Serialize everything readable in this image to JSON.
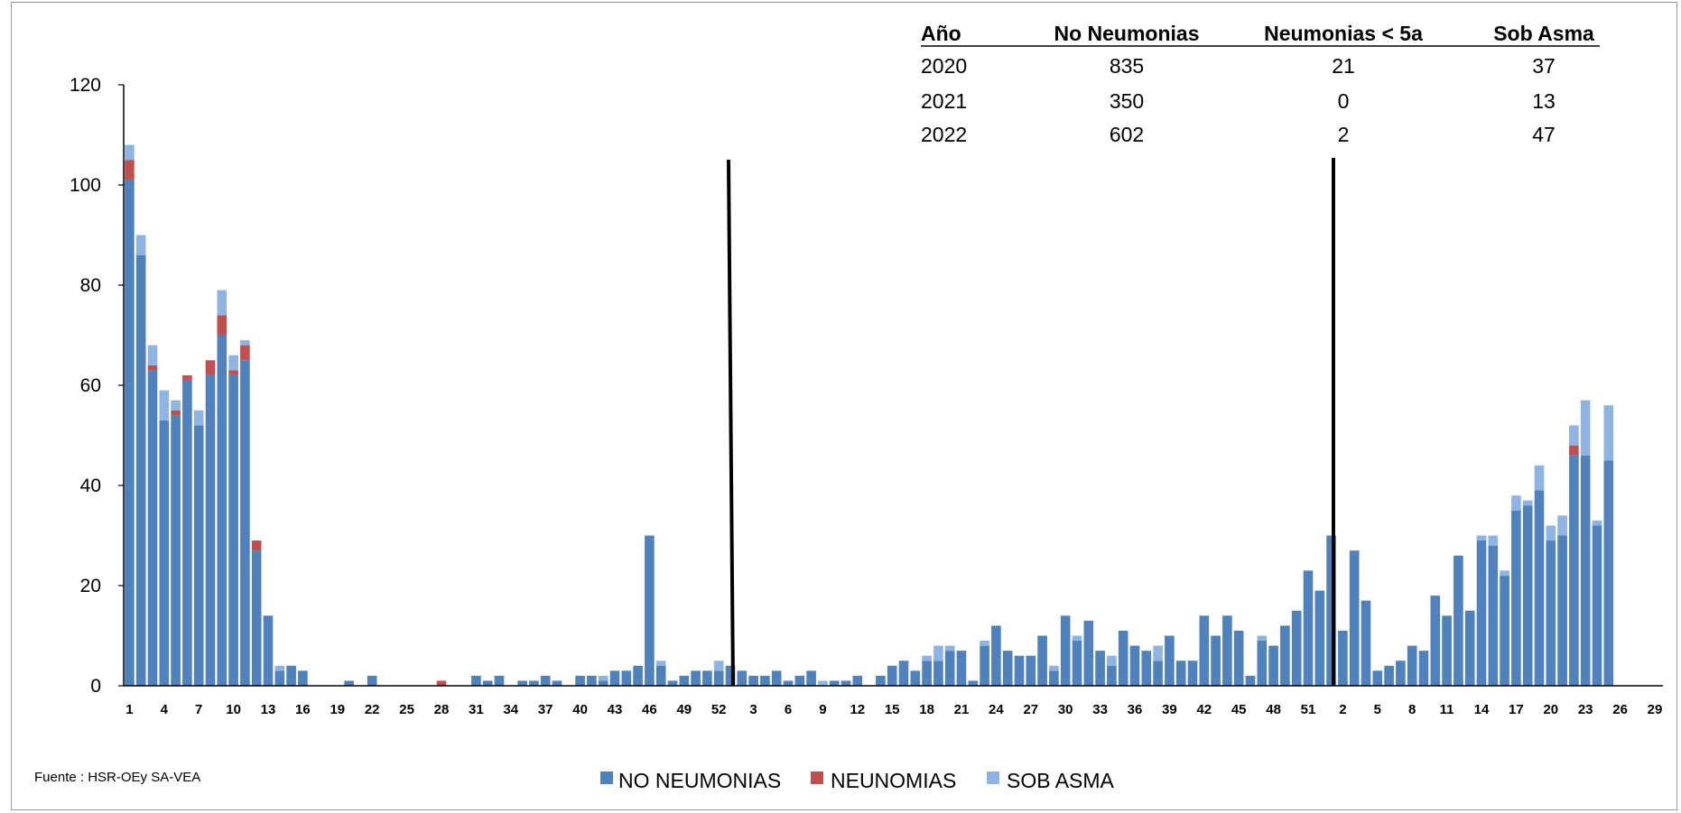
{
  "source": "Fuente : HSR-OEy SA-VEA",
  "colors": {
    "no_neumonias": "#4f81bd",
    "neumonias": "#c0504d",
    "sob_asma": "#8eb4e3"
  },
  "table": {
    "headers": [
      "Año",
      "No Neumonias",
      "Neumonias < 5a",
      "Sob  Asma"
    ],
    "rows": [
      [
        "2020",
        "835",
        "21",
        "37"
      ],
      [
        "2021",
        "350",
        "0",
        "13"
      ],
      [
        "2022",
        "602",
        "2",
        "47"
      ]
    ]
  },
  "chart_data": {
    "type": "bar",
    "stacked": true,
    "ylim": [
      0,
      120
    ],
    "yticks": [
      0,
      20,
      40,
      60,
      80,
      100,
      120
    ],
    "xtick_labels": [
      "1",
      "4",
      "7",
      "10",
      "13",
      "16",
      "19",
      "22",
      "25",
      "28",
      "31",
      "34",
      "37",
      "40",
      "43",
      "46",
      "49",
      "52",
      "3",
      "6",
      "9",
      "12",
      "15",
      "18",
      "21",
      "24",
      "27",
      "30",
      "33",
      "36",
      "39",
      "42",
      "45",
      "48",
      "51",
      "2",
      "5",
      "8",
      "11",
      "14",
      "17",
      "20",
      "23",
      "26",
      "29"
    ],
    "year_dividers_after_week_index": [
      53,
      105
    ],
    "legend_position": "bottom",
    "series": [
      {
        "name": "NO NEUMONIAS",
        "color": "#4f81bd",
        "values": [
          101,
          86,
          63,
          53,
          54,
          61,
          52,
          62,
          70,
          62,
          65,
          27,
          14,
          3,
          4,
          3,
          0,
          0,
          0,
          1,
          0,
          2,
          0,
          0,
          0,
          0,
          0,
          0,
          0,
          0,
          2,
          1,
          2,
          0,
          1,
          1,
          2,
          1,
          0,
          2,
          2,
          1,
          3,
          3,
          4,
          30,
          4,
          1,
          2,
          3,
          3,
          3,
          4,
          3,
          2,
          2,
          3,
          1,
          2,
          3,
          0,
          1,
          1,
          2,
          0,
          2,
          4,
          5,
          3,
          5,
          5,
          7,
          7,
          1,
          8,
          12,
          7,
          6,
          6,
          10,
          3,
          14,
          9,
          13,
          7,
          4,
          11,
          8,
          7,
          5,
          10,
          5,
          5,
          14,
          10,
          14,
          11,
          2,
          9,
          8,
          12,
          15,
          23,
          19,
          30,
          11,
          27,
          17,
          3,
          4,
          5,
          8,
          7,
          18,
          14,
          26,
          15,
          29,
          28,
          22,
          35,
          36,
          39,
          29,
          30,
          46,
          46,
          32,
          45
        ]
      },
      {
        "name": "NEUNOMIAS",
        "color": "#c0504d",
        "values": [
          4,
          0,
          1,
          0,
          1,
          1,
          0,
          3,
          4,
          1,
          3,
          2,
          0,
          0,
          0,
          0,
          0,
          0,
          0,
          0,
          0,
          0,
          0,
          0,
          0,
          0,
          0,
          1,
          0,
          0,
          0,
          0,
          0,
          0,
          0,
          0,
          0,
          0,
          0,
          0,
          0,
          0,
          0,
          0,
          0,
          0,
          0,
          0,
          0,
          0,
          0,
          0,
          0,
          0,
          0,
          0,
          0,
          0,
          0,
          0,
          0,
          0,
          0,
          0,
          0,
          0,
          0,
          0,
          0,
          0,
          0,
          0,
          0,
          0,
          0,
          0,
          0,
          0,
          0,
          0,
          0,
          0,
          0,
          0,
          0,
          0,
          0,
          0,
          0,
          0,
          0,
          0,
          0,
          0,
          0,
          0,
          0,
          0,
          0,
          0,
          0,
          0,
          0,
          0,
          0,
          0,
          0,
          0,
          0,
          0,
          0,
          0,
          0,
          0,
          0,
          0,
          0,
          0,
          0,
          0,
          0,
          0,
          0,
          0,
          0,
          2,
          0,
          0,
          0
        ]
      },
      {
        "name": "SOB ASMA",
        "color": "#8eb4e3",
        "values": [
          3,
          4,
          4,
          6,
          2,
          0,
          3,
          0,
          5,
          3,
          1,
          0,
          0,
          1,
          0,
          0,
          0,
          0,
          0,
          0,
          0,
          0,
          0,
          0,
          0,
          0,
          0,
          0,
          0,
          0,
          0,
          0,
          0,
          0,
          0,
          0,
          0,
          0,
          0,
          0,
          0,
          1,
          0,
          0,
          0,
          0,
          1,
          0,
          0,
          0,
          0,
          2,
          0,
          0,
          0,
          0,
          0,
          0,
          0,
          0,
          1,
          0,
          0,
          0,
          0,
          0,
          0,
          0,
          0,
          1,
          3,
          1,
          0,
          0,
          1,
          0,
          0,
          0,
          0,
          0,
          1,
          0,
          1,
          0,
          0,
          2,
          0,
          0,
          0,
          3,
          0,
          0,
          0,
          0,
          0,
          0,
          0,
          0,
          1,
          0,
          0,
          0,
          0,
          0,
          0,
          0,
          0,
          0,
          0,
          0,
          0,
          0,
          0,
          0,
          0,
          0,
          0,
          1,
          2,
          1,
          3,
          1,
          5,
          3,
          4,
          4,
          11,
          1,
          11
        ]
      }
    ]
  }
}
